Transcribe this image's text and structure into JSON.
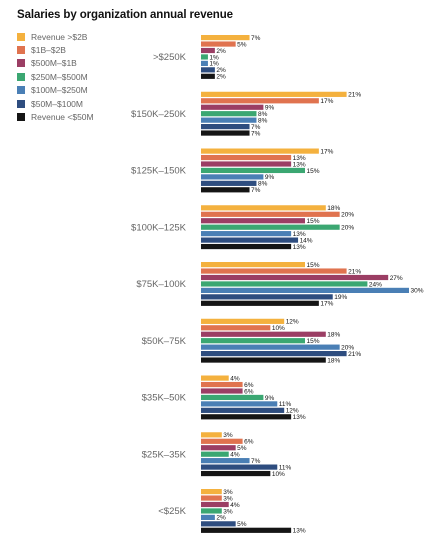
{
  "chart_data": {
    "type": "bar",
    "orientation": "horizontal",
    "title": "Salaries by organization annual revenue",
    "legend_position": "top-left",
    "categories": [
      ">$250K",
      "$150K–250K",
      "$125K–150K",
      "$100K–125K",
      "$75K–100K",
      "$50K–75K",
      "$35K–50K",
      "$25K–35K",
      "<$25K"
    ],
    "series": [
      {
        "name": "Revenue >$2B",
        "color": "#f4b13e",
        "values": [
          7,
          21,
          17,
          18,
          15,
          12,
          4,
          3,
          3
        ]
      },
      {
        "name": "$1B–$2B",
        "color": "#e0734f",
        "values": [
          5,
          17,
          13,
          20,
          21,
          10,
          6,
          6,
          3
        ]
      },
      {
        "name": "$500M–$1B",
        "color": "#9b3e64",
        "values": [
          2,
          9,
          13,
          15,
          27,
          18,
          6,
          5,
          4
        ]
      },
      {
        "name": "$250M–$500M",
        "color": "#3ba772",
        "values": [
          1,
          8,
          15,
          20,
          24,
          15,
          9,
          4,
          3
        ]
      },
      {
        "name": "$100M–$250M",
        "color": "#4a7fb5",
        "values": [
          1,
          8,
          9,
          13,
          30,
          20,
          11,
          7,
          2
        ]
      },
      {
        "name": "$50M–$100M",
        "color": "#2e4d7f",
        "values": [
          2,
          7,
          8,
          14,
          19,
          21,
          12,
          11,
          5
        ]
      },
      {
        "name": "Revenue <$50M",
        "color": "#151515",
        "values": [
          2,
          7,
          7,
          13,
          17,
          18,
          13,
          10,
          13
        ]
      }
    ],
    "value_suffix": "%",
    "xlim": [
      0,
      30
    ]
  }
}
